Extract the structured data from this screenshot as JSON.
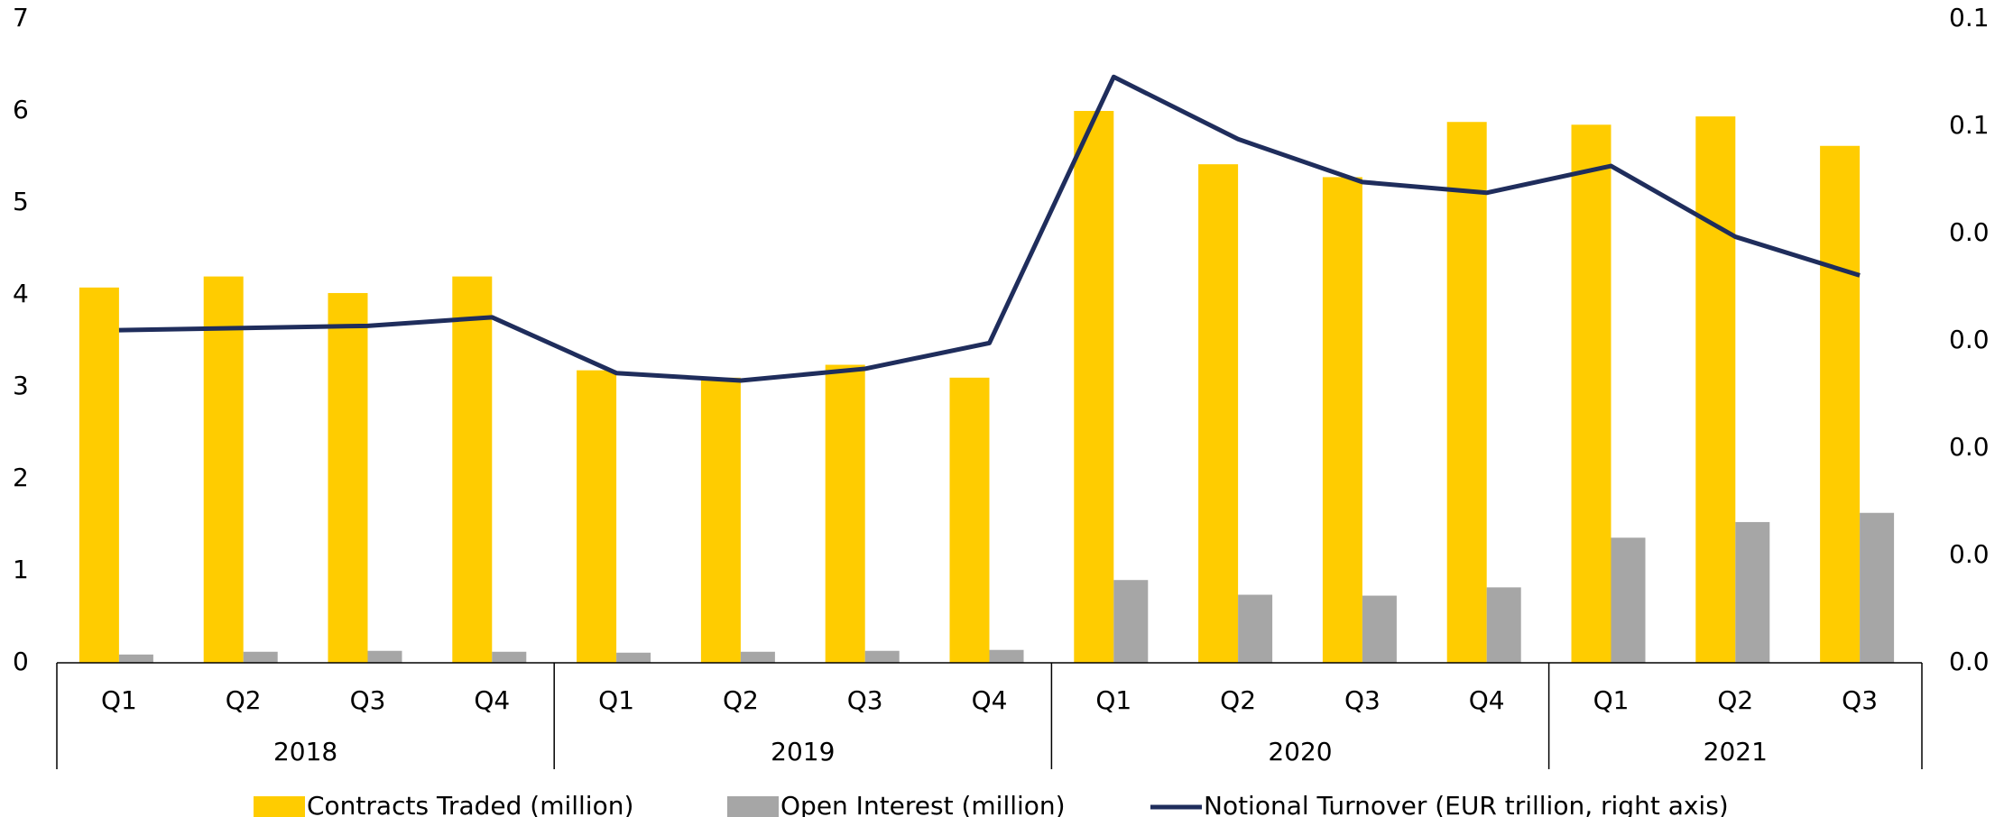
{
  "chart_data": {
    "type": "bar",
    "groups": [
      {
        "name": "2018",
        "categories": [
          "Q1",
          "Q2",
          "Q3",
          "Q4"
        ]
      },
      {
        "name": "2019",
        "categories": [
          "Q1",
          "Q2",
          "Q3",
          "Q4"
        ]
      },
      {
        "name": "2020",
        "categories": [
          "Q1",
          "Q2",
          "Q3",
          "Q4"
        ]
      },
      {
        "name": "2021",
        "categories": [
          "Q1",
          "Q2",
          "Q3"
        ]
      }
    ],
    "series": [
      {
        "name": "Contracts Traded (million)",
        "type": "bar",
        "color": "#ffcc00",
        "values": [
          4.08,
          4.2,
          4.02,
          4.2,
          3.18,
          3.1,
          3.24,
          3.1,
          6.0,
          5.42,
          5.28,
          5.88,
          5.85,
          5.94,
          5.62
        ]
      },
      {
        "name": "Open Interest (million)",
        "type": "bar",
        "color": "#a6a6a6",
        "values": [
          0.09,
          0.12,
          0.13,
          0.12,
          0.11,
          0.12,
          0.13,
          0.14,
          0.9,
          0.74,
          0.73,
          0.82,
          1.36,
          1.53,
          1.63
        ]
      },
      {
        "name": "Notional Turnover (EUR trillion, right axis)",
        "type": "line",
        "axis": "y2",
        "color": "#1f2d5c",
        "values": [
          0.031,
          0.0312,
          0.0314,
          0.0322,
          0.027,
          0.0263,
          0.0274,
          0.0298,
          0.0546,
          0.0488,
          0.0448,
          0.0438,
          0.0463,
          0.0397,
          0.0361
        ]
      }
    ],
    "ylim": [
      0,
      7
    ],
    "yticks": [
      0,
      1,
      2,
      3,
      4,
      5,
      6,
      7
    ],
    "y2lim": [
      0,
      0.06
    ],
    "y2ticks": [
      {
        "value": 0,
        "label": "0.0"
      },
      {
        "value": 0.01,
        "label": "0.0"
      },
      {
        "value": 0.02,
        "label": "0.0"
      },
      {
        "value": 0.03,
        "label": "0.0"
      },
      {
        "value": 0.04,
        "label": "0.0"
      },
      {
        "value": 0.05,
        "label": "0.1"
      },
      {
        "value": 0.06,
        "label": "0.1"
      }
    ],
    "legend": "bottom"
  }
}
